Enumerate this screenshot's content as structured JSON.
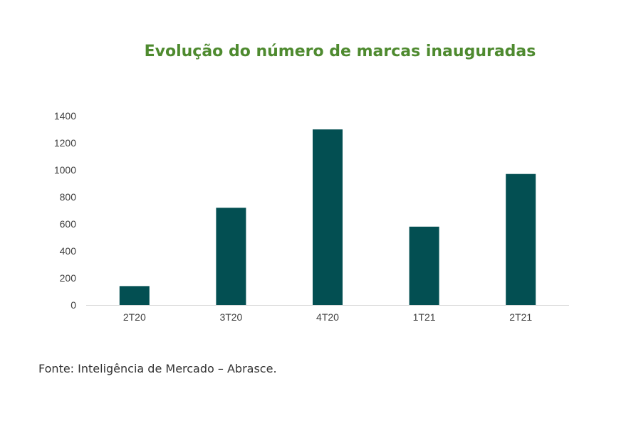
{
  "chart_data": {
    "type": "bar",
    "title": "Evolução do número de marcas inauguradas",
    "categories": [
      "2T20",
      "3T20",
      "4T20",
      "1T21",
      "2T21"
    ],
    "values": [
      140,
      720,
      1300,
      580,
      970
    ],
    "ylim": [
      0,
      1400
    ],
    "yticks": [
      0,
      200,
      400,
      600,
      800,
      1000,
      1200,
      1400
    ],
    "ytick_labels": [
      "0",
      "200",
      "400",
      "600",
      "800",
      "1000",
      "1200",
      "1400"
    ],
    "grid": false,
    "legend": "none",
    "bar_color": "#034f52",
    "axis_color": "#d9d9d9",
    "title_color": "#4e8a2f"
  },
  "source": "Fonte: Inteligência de Mercado – Abrasce."
}
